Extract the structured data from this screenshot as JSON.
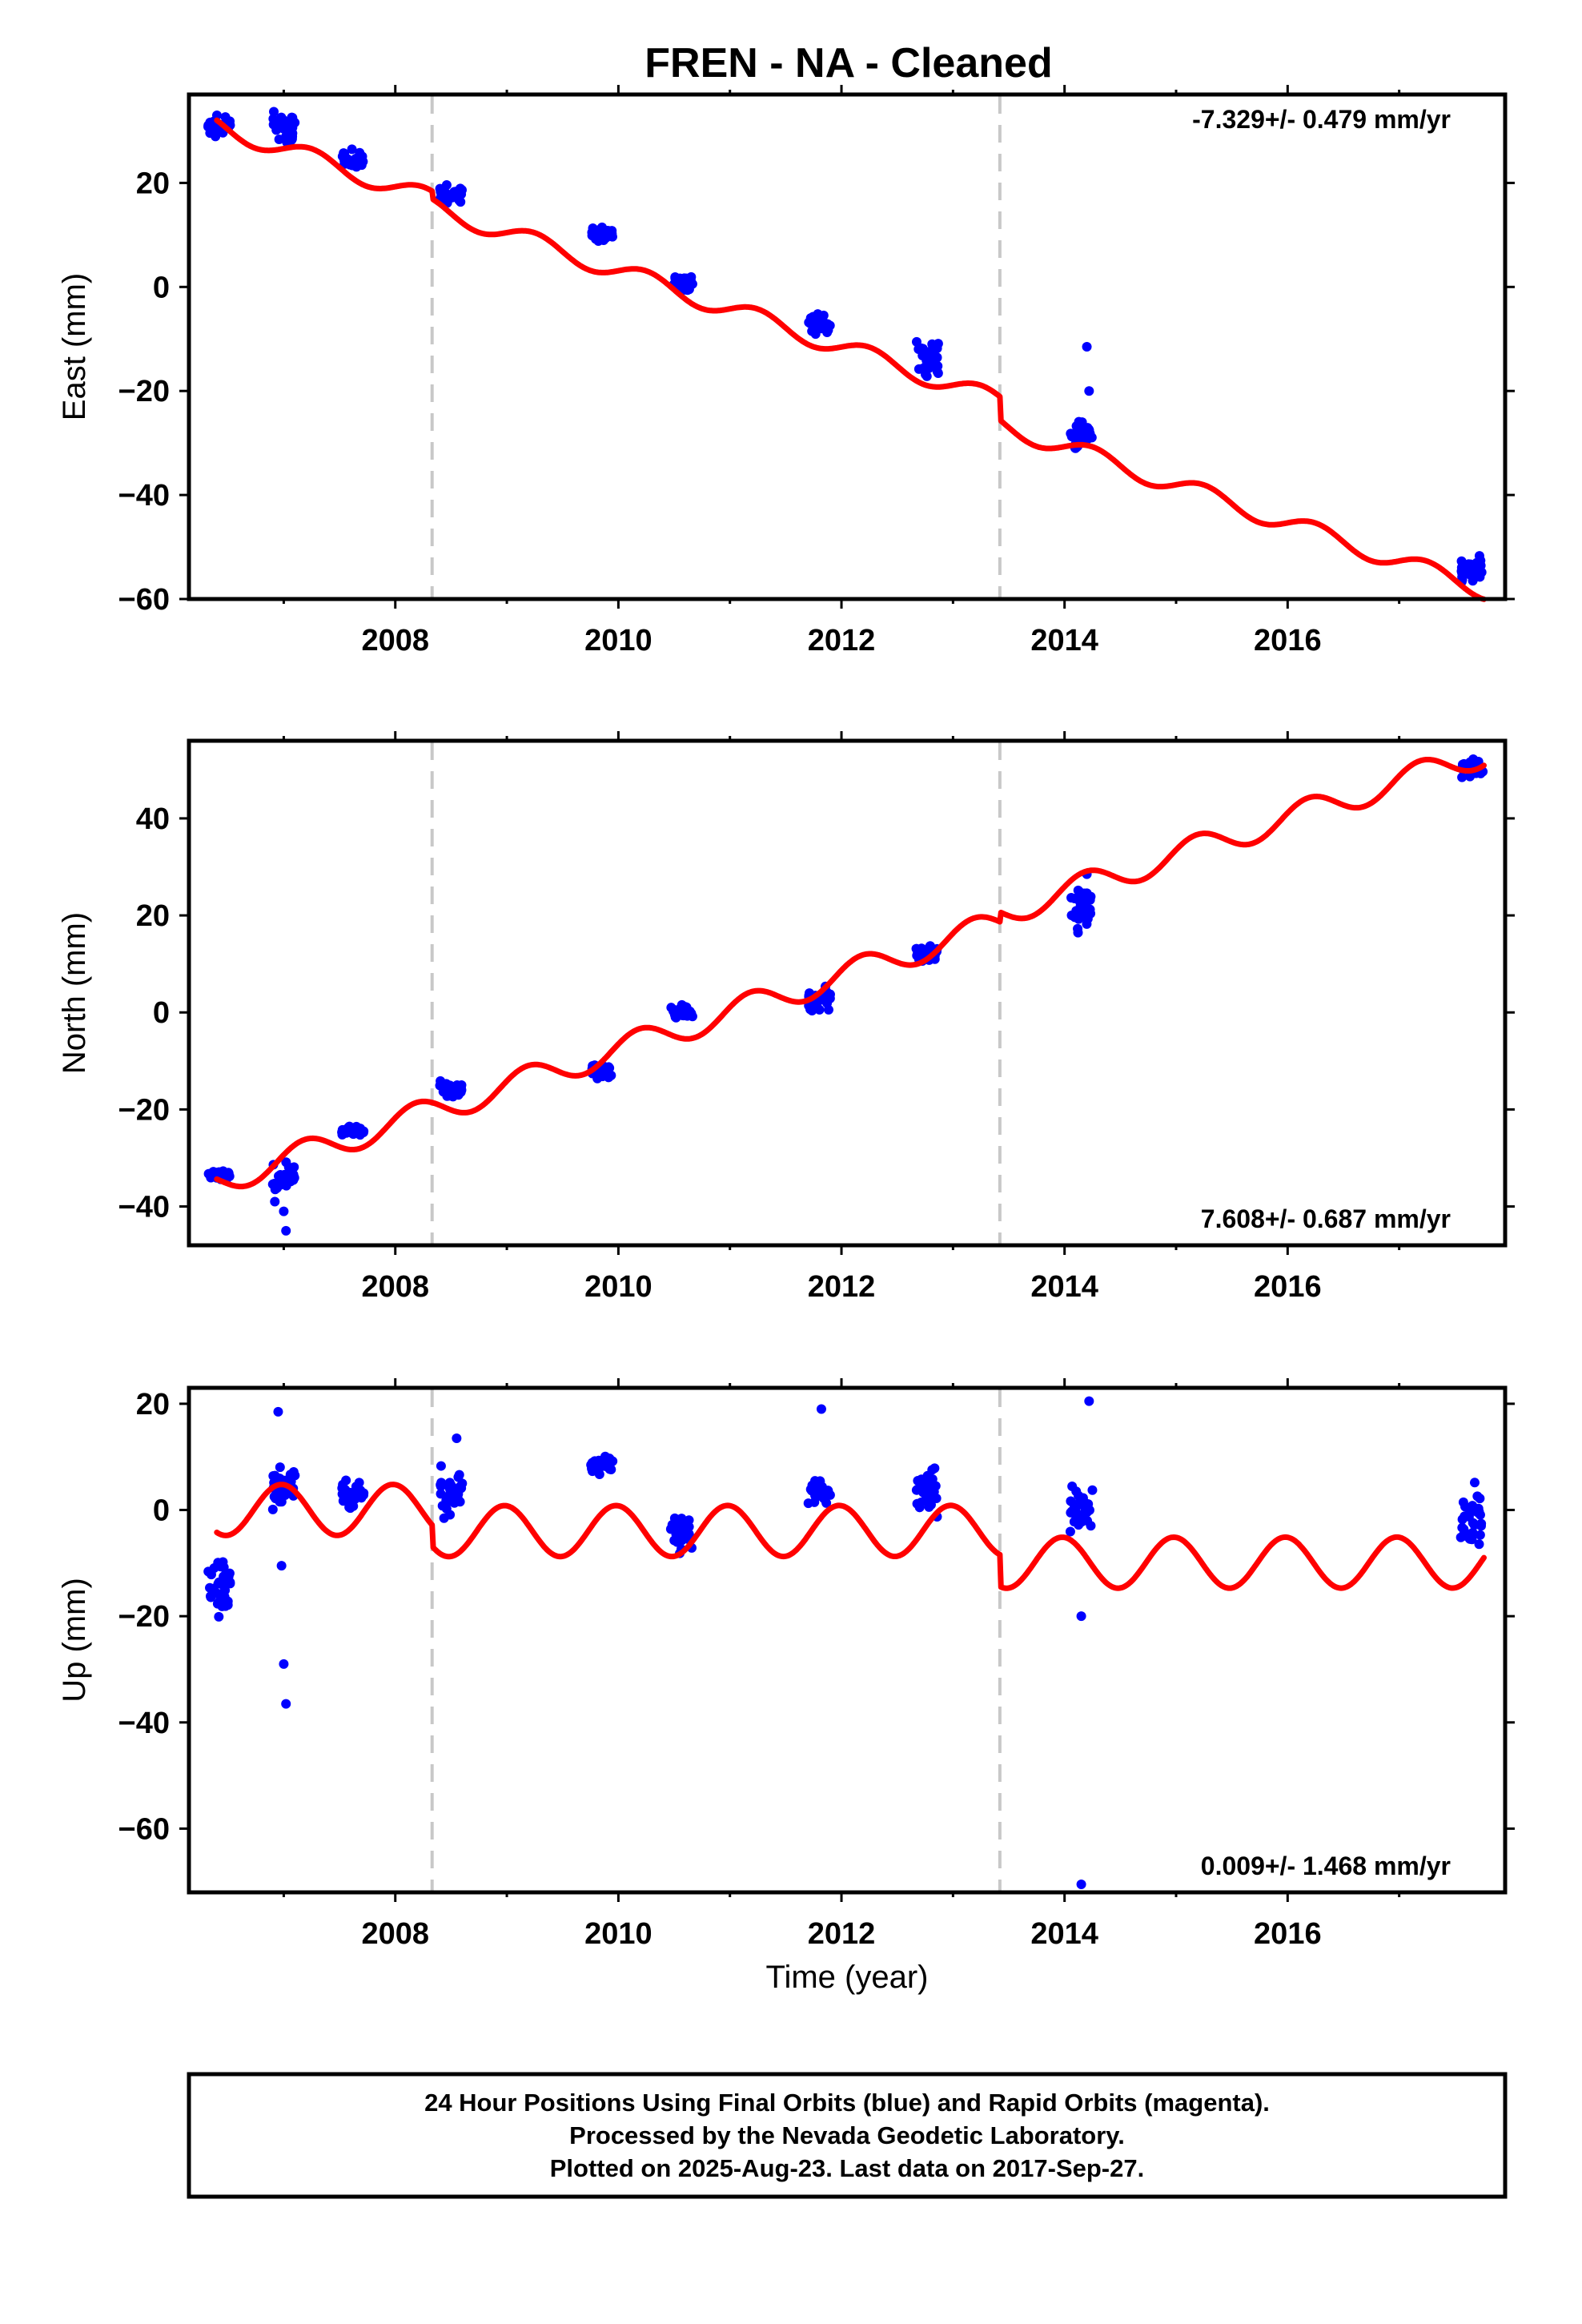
{
  "figure": {
    "title": "FREN  - NA - Cleaned",
    "xlabel": "Time (year)",
    "note_lines": [
      "24 Hour Positions Using Final Orbits (blue) and Rapid Orbits (magenta).",
      "Processed by the Nevada Geodetic Laboratory.",
      "Plotted on 2025-Aug-23. Last data on 2017-Sep-27."
    ],
    "colors": {
      "data_points": "#0000ff",
      "model_line": "#ff0000",
      "offset_lines": "#c8c8c8",
      "frame": "#000000"
    }
  },
  "chart_data": [
    {
      "type": "scatter",
      "ylabel": "East (mm)",
      "rate_text": "-7.329+/- 0.479 mm/yr",
      "rate_position": "top-right",
      "xlim": [
        2006.15,
        2017.95
      ],
      "ylim": [
        -60,
        37
      ],
      "xticks": [
        2008,
        2010,
        2012,
        2014,
        2016
      ],
      "yticks": [
        20,
        0,
        -20,
        -40,
        -60
      ],
      "offset_epochs": [
        2008.33,
        2013.42
      ],
      "grid": false,
      "clusters": [
        {
          "x": 2006.42,
          "y": [
            28,
            34
          ]
        },
        {
          "x": 2007.0,
          "y": [
            27,
            35
          ]
        },
        {
          "x": 2007.62,
          "y": [
            22,
            27
          ]
        },
        {
          "x": 2008.5,
          "y": [
            15,
            20
          ]
        },
        {
          "x": 2009.85,
          "y": [
            8,
            12
          ]
        },
        {
          "x": 2010.57,
          "y": [
            -1.5,
            3.5
          ]
        },
        {
          "x": 2011.8,
          "y": [
            -10,
            -4
          ]
        },
        {
          "x": 2012.77,
          "y": [
            -18,
            -10
          ]
        },
        {
          "x": 2014.15,
          "y": [
            -33,
            -25
          ]
        },
        {
          "x": 2017.65,
          "y": [
            -58,
            -51
          ]
        }
      ],
      "outliers": [
        [
          2014.2,
          -11.5
        ],
        [
          2014.22,
          -20
        ]
      ],
      "model": {
        "base": 31,
        "rate": -7.329,
        "seasonal_amp": 1.8,
        "phase": 0.0,
        "offsets": [
          -1.5,
          -4.5
        ]
      }
    },
    {
      "type": "scatter",
      "ylabel": "North (mm)",
      "rate_text": "7.608+/- 0.687 mm/yr",
      "rate_position": "bottom-right",
      "xlim": [
        2006.15,
        2017.95
      ],
      "ylim": [
        -48,
        56
      ],
      "xticks": [
        2008,
        2010,
        2012,
        2014,
        2016
      ],
      "yticks": [
        40,
        20,
        0,
        -20,
        -40
      ],
      "offset_epochs": [
        2008.33,
        2013.42
      ],
      "grid": false,
      "clusters": [
        {
          "x": 2006.42,
          "y": [
            -35,
            -32
          ]
        },
        {
          "x": 2007.0,
          "y": [
            -38,
            -30
          ]
        },
        {
          "x": 2007.62,
          "y": [
            -26,
            -23
          ]
        },
        {
          "x": 2008.5,
          "y": [
            -18,
            -14
          ]
        },
        {
          "x": 2009.85,
          "y": [
            -14,
            -10
          ]
        },
        {
          "x": 2010.57,
          "y": [
            -2,
            2
          ]
        },
        {
          "x": 2011.8,
          "y": [
            -1,
            6
          ]
        },
        {
          "x": 2012.77,
          "y": [
            9,
            15
          ]
        },
        {
          "x": 2014.15,
          "y": [
            15,
            28
          ]
        },
        {
          "x": 2017.65,
          "y": [
            48,
            53
          ]
        }
      ],
      "outliers": [
        [
          2006.92,
          -39
        ],
        [
          2007.0,
          -41
        ],
        [
          2007.02,
          -45
        ],
        [
          2014.2,
          28.5
        ]
      ],
      "model": {
        "base": -35,
        "rate": 7.608,
        "seasonal_amp": 2.8,
        "phase": 0.4,
        "offsets": [
          0,
          2
        ]
      }
    },
    {
      "type": "scatter",
      "ylabel": "Up (mm)",
      "rate_text": "0.009+/- 1.468 mm/yr",
      "rate_position": "bottom-right",
      "xlim": [
        2006.15,
        2017.95
      ],
      "ylim": [
        -72,
        23
      ],
      "xticks": [
        2008,
        2010,
        2012,
        2014,
        2016
      ],
      "yticks": [
        20,
        0,
        -20,
        -40,
        -60
      ],
      "offset_epochs": [
        2008.33,
        2013.42
      ],
      "grid": false,
      "clusters": [
        {
          "x": 2006.42,
          "y": [
            -23,
            -7
          ]
        },
        {
          "x": 2007.0,
          "y": [
            -2,
            11
          ]
        },
        {
          "x": 2007.62,
          "y": [
            -1,
            6
          ]
        },
        {
          "x": 2008.5,
          "y": [
            -4,
            10
          ]
        },
        {
          "x": 2009.85,
          "y": [
            6,
            11
          ]
        },
        {
          "x": 2010.57,
          "y": [
            -9,
            1
          ]
        },
        {
          "x": 2011.8,
          "y": [
            -1,
            7
          ]
        },
        {
          "x": 2012.77,
          "y": [
            -2,
            9
          ]
        },
        {
          "x": 2014.15,
          "y": [
            -7,
            8
          ]
        },
        {
          "x": 2017.65,
          "y": [
            -11,
            8
          ]
        }
      ],
      "outliers": [
        [
          2006.95,
          18.5
        ],
        [
          2006.98,
          -10.5
        ],
        [
          2007.0,
          -29
        ],
        [
          2007.02,
          -36.5
        ],
        [
          2008.55,
          13.5
        ],
        [
          2011.82,
          19
        ],
        [
          2014.15,
          -20
        ],
        [
          2014.22,
          20.5
        ],
        [
          2014.15,
          -70.5
        ]
      ],
      "model": {
        "base": 0,
        "rate": 0.009,
        "seasonal_amp": 4.8,
        "phase": 1.7,
        "offsets": [
          -4,
          -6
        ]
      }
    }
  ]
}
